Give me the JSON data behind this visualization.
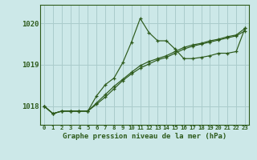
{
  "title": "Graphe pression niveau de la mer (hPa)",
  "bg_color": "#cce8e8",
  "grid_color": "#aacccc",
  "line_color": "#2d5a1b",
  "x_labels": [
    "0",
    "1",
    "2",
    "3",
    "4",
    "5",
    "6",
    "7",
    "8",
    "9",
    "10",
    "11",
    "12",
    "13",
    "14",
    "15",
    "16",
    "17",
    "18",
    "19",
    "20",
    "21",
    "22",
    "23"
  ],
  "yticks": [
    1018,
    1019,
    1020
  ],
  "ylim": [
    1017.55,
    1020.45
  ],
  "xlim": [
    -0.5,
    23.5
  ],
  "series1": [
    1018.0,
    1017.82,
    1017.88,
    1017.88,
    1017.88,
    1017.88,
    1018.25,
    1018.52,
    1018.68,
    1019.05,
    1019.55,
    1020.12,
    1019.78,
    1019.58,
    1019.58,
    1019.38,
    1019.15,
    1019.15,
    1019.18,
    1019.22,
    1019.28,
    1019.28,
    1019.32,
    1019.88
  ],
  "series2": [
    1018.0,
    1017.82,
    1017.88,
    1017.88,
    1017.88,
    1017.88,
    1018.08,
    1018.28,
    1018.48,
    1018.65,
    1018.82,
    1018.98,
    1019.08,
    1019.15,
    1019.22,
    1019.32,
    1019.42,
    1019.48,
    1019.52,
    1019.58,
    1019.62,
    1019.68,
    1019.72,
    1019.88
  ],
  "series3": [
    1018.0,
    1017.82,
    1017.88,
    1017.88,
    1017.88,
    1017.88,
    1018.05,
    1018.22,
    1018.42,
    1018.62,
    1018.78,
    1018.92,
    1019.02,
    1019.12,
    1019.18,
    1019.28,
    1019.38,
    1019.45,
    1019.5,
    1019.55,
    1019.6,
    1019.65,
    1019.7,
    1019.82
  ]
}
